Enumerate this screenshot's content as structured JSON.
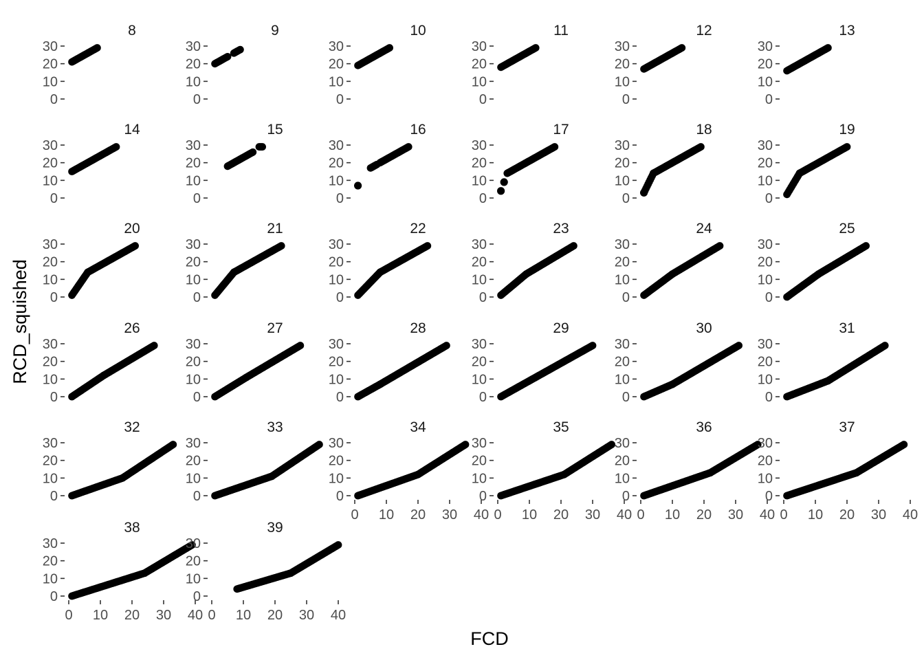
{
  "chart_data": {
    "type": "scatter",
    "layout": "facet_wrap",
    "xlabel": "FCD",
    "ylabel": "RCD_squished",
    "xlim": [
      0,
      40
    ],
    "ylim": [
      0,
      30
    ],
    "x_ticks": [
      0,
      10,
      20,
      30,
      40
    ],
    "y_ticks": [
      0,
      10,
      20,
      30
    ],
    "grid": false,
    "point_color": "#000000",
    "facets": [
      {
        "label": "8",
        "segments": [
          [
            [
              1,
              21
            ],
            [
              9,
              29
            ]
          ]
        ]
      },
      {
        "label": "9",
        "segments": [
          [
            [
              1,
              20
            ],
            [
              5,
              24
            ]
          ],
          [
            [
              7,
              26
            ],
            [
              9,
              28
            ]
          ]
        ]
      },
      {
        "label": "10",
        "segments": [
          [
            [
              1,
              19
            ],
            [
              11,
              29
            ]
          ]
        ]
      },
      {
        "label": "11",
        "segments": [
          [
            [
              1,
              18
            ],
            [
              12,
              29
            ]
          ]
        ]
      },
      {
        "label": "12",
        "segments": [
          [
            [
              1,
              17
            ],
            [
              13,
              29
            ]
          ]
        ]
      },
      {
        "label": "13",
        "segments": [
          [
            [
              1,
              16
            ],
            [
              14,
              29
            ]
          ]
        ]
      },
      {
        "label": "14",
        "segments": [
          [
            [
              1,
              15
            ],
            [
              15,
              29
            ]
          ]
        ]
      },
      {
        "label": "15",
        "segments": [
          [
            [
              5,
              18
            ],
            [
              13,
              26
            ]
          ],
          [
            [
              15,
              29
            ],
            [
              16,
              29
            ]
          ]
        ]
      },
      {
        "label": "16",
        "points": [
          [
            1,
            7
          ]
        ],
        "segments": [
          [
            [
              5,
              17
            ],
            [
              7,
              19
            ]
          ],
          [
            [
              8,
              20
            ],
            [
              17,
              29
            ]
          ]
        ]
      },
      {
        "label": "17",
        "points": [
          [
            1,
            4
          ],
          [
            2,
            9
          ]
        ],
        "segments": [
          [
            [
              3,
              14
            ],
            [
              18,
              29
            ]
          ]
        ]
      },
      {
        "label": "18",
        "points": [
          [
            1,
            3
          ]
        ],
        "segments": [
          [
            [
              1,
              3
            ],
            [
              4,
              14
            ]
          ],
          [
            [
              4,
              14
            ],
            [
              19,
              29
            ]
          ]
        ]
      },
      {
        "label": "19",
        "segments": [
          [
            [
              1,
              2
            ],
            [
              5,
              14
            ]
          ],
          [
            [
              5,
              14
            ],
            [
              20,
              29
            ]
          ]
        ]
      },
      {
        "label": "20",
        "segments": [
          [
            [
              1,
              1
            ],
            [
              6,
              14
            ]
          ],
          [
            [
              6,
              14
            ],
            [
              21,
              29
            ]
          ]
        ]
      },
      {
        "label": "21",
        "segments": [
          [
            [
              1,
              1
            ],
            [
              7,
              14
            ]
          ],
          [
            [
              7,
              14
            ],
            [
              22,
              29
            ]
          ]
        ]
      },
      {
        "label": "22",
        "segments": [
          [
            [
              1,
              1
            ],
            [
              8,
              14
            ]
          ],
          [
            [
              8,
              14
            ],
            [
              23,
              29
            ]
          ]
        ]
      },
      {
        "label": "23",
        "segments": [
          [
            [
              1,
              1
            ],
            [
              9,
              13
            ]
          ],
          [
            [
              9,
              13
            ],
            [
              24,
              29
            ]
          ]
        ]
      },
      {
        "label": "24",
        "segments": [
          [
            [
              1,
              1
            ],
            [
              10,
              13
            ]
          ],
          [
            [
              10,
              13
            ],
            [
              25,
              29
            ]
          ]
        ]
      },
      {
        "label": "25",
        "segments": [
          [
            [
              1,
              0
            ],
            [
              11,
              13
            ]
          ],
          [
            [
              11,
              13
            ],
            [
              26,
              29
            ]
          ]
        ]
      },
      {
        "label": "26",
        "segments": [
          [
            [
              1,
              0
            ],
            [
              11,
              12
            ]
          ],
          [
            [
              11,
              12
            ],
            [
              27,
              29
            ]
          ]
        ]
      },
      {
        "label": "27",
        "segments": [
          [
            [
              1,
              0
            ],
            [
              11,
              11
            ]
          ],
          [
            [
              11,
              11
            ],
            [
              28,
              29
            ]
          ]
        ]
      },
      {
        "label": "28",
        "segments": [
          [
            [
              1,
              0
            ],
            [
              8,
              7
            ]
          ],
          [
            [
              8,
              7
            ],
            [
              29,
              29
            ]
          ]
        ]
      },
      {
        "label": "29",
        "segments": [
          [
            [
              1,
              0
            ],
            [
              30,
              29
            ]
          ]
        ]
      },
      {
        "label": "30",
        "segments": [
          [
            [
              1,
              0
            ],
            [
              10,
              7
            ]
          ],
          [
            [
              10,
              7
            ],
            [
              31,
              29
            ]
          ]
        ]
      },
      {
        "label": "31",
        "segments": [
          [
            [
              1,
              0
            ],
            [
              14,
              9
            ]
          ],
          [
            [
              14,
              9
            ],
            [
              32,
              29
            ]
          ]
        ]
      },
      {
        "label": "32",
        "segments": [
          [
            [
              1,
              0
            ],
            [
              17,
              10
            ]
          ],
          [
            [
              17,
              10
            ],
            [
              33,
              29
            ]
          ]
        ]
      },
      {
        "label": "33",
        "segments": [
          [
            [
              1,
              0
            ],
            [
              19,
              11
            ]
          ],
          [
            [
              19,
              11
            ],
            [
              34,
              29
            ]
          ]
        ]
      },
      {
        "label": "34",
        "segments": [
          [
            [
              1,
              0
            ],
            [
              20,
              12
            ]
          ],
          [
            [
              20,
              12
            ],
            [
              35,
              29
            ]
          ]
        ]
      },
      {
        "label": "35",
        "segments": [
          [
            [
              1,
              0
            ],
            [
              21,
              12
            ]
          ],
          [
            [
              21,
              12
            ],
            [
              36,
              29
            ]
          ]
        ]
      },
      {
        "label": "36",
        "segments": [
          [
            [
              1,
              0
            ],
            [
              22,
              13
            ]
          ],
          [
            [
              22,
              13
            ],
            [
              37,
              29
            ]
          ]
        ]
      },
      {
        "label": "37",
        "segments": [
          [
            [
              1,
              0
            ],
            [
              23,
              13
            ]
          ],
          [
            [
              23,
              13
            ],
            [
              38,
              29
            ]
          ]
        ]
      },
      {
        "label": "38",
        "segments": [
          [
            [
              1,
              0
            ],
            [
              24,
              13
            ]
          ],
          [
            [
              24,
              13
            ],
            [
              39,
              29
            ]
          ]
        ]
      },
      {
        "label": "39",
        "segments": [
          [
            [
              8,
              4
            ],
            [
              25,
              13
            ]
          ],
          [
            [
              25,
              13
            ],
            [
              40,
              29
            ]
          ]
        ]
      }
    ]
  }
}
